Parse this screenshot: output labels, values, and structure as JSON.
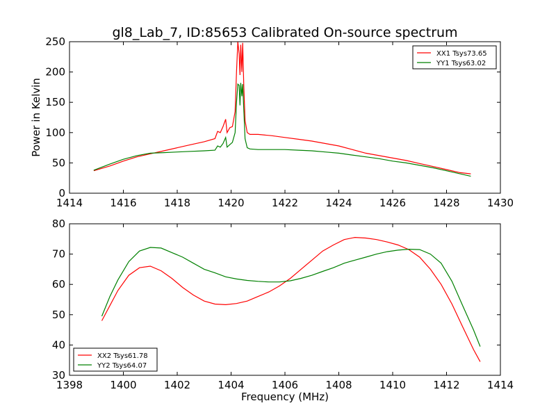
{
  "title": "gl8_Lab_7, ID:85653 Calibrated On-source spectrum",
  "xlabel": "Frequency (MHz)",
  "ylabel": "Power in Kelvin",
  "chart_data": [
    {
      "type": "line",
      "xlim": [
        1414,
        1430
      ],
      "ylim": [
        0,
        250
      ],
      "xticks": [
        "1414",
        "1416",
        "1418",
        "1420",
        "1422",
        "1424",
        "1426",
        "1428",
        "1430"
      ],
      "yticks": [
        "0",
        "50",
        "100",
        "150",
        "200",
        "250"
      ],
      "legend_position": "top-right",
      "grid": false,
      "series": [
        {
          "name": "XX1 Tsys73.65",
          "color": "#ff0000",
          "x": [
            1414.9,
            1415.5,
            1416.0,
            1416.5,
            1417.0,
            1417.5,
            1418.0,
            1418.5,
            1419.0,
            1419.4,
            1419.5,
            1419.6,
            1419.7,
            1419.8,
            1419.85,
            1419.95,
            1420.05,
            1420.15,
            1420.2,
            1420.25,
            1420.3,
            1420.33,
            1420.36,
            1420.4,
            1420.43,
            1420.47,
            1420.52,
            1420.6,
            1420.7,
            1421.0,
            1421.5,
            1422.0,
            1422.5,
            1423.0,
            1423.5,
            1424.0,
            1424.5,
            1425.0,
            1425.5,
            1426.0,
            1426.5,
            1427.0,
            1427.5,
            1428.0,
            1428.5,
            1428.9
          ],
          "y": [
            37,
            45,
            53,
            60,
            65,
            70,
            75,
            80,
            85,
            90,
            102,
            100,
            110,
            122,
            100,
            108,
            110,
            135,
            200,
            250,
            230,
            195,
            245,
            200,
            248,
            180,
            120,
            100,
            97,
            97,
            95,
            92,
            89,
            86,
            82,
            78,
            72,
            66,
            62,
            58,
            54,
            49,
            44,
            39,
            34,
            32
          ]
        },
        {
          "name": "YY1 Tsys63.02",
          "color": "#008000",
          "x": [
            1414.9,
            1415.5,
            1416.0,
            1416.5,
            1417.0,
            1417.5,
            1418.0,
            1418.5,
            1419.0,
            1419.4,
            1419.5,
            1419.6,
            1419.7,
            1419.8,
            1419.85,
            1419.95,
            1420.05,
            1420.15,
            1420.2,
            1420.25,
            1420.3,
            1420.33,
            1420.36,
            1420.4,
            1420.43,
            1420.47,
            1420.52,
            1420.6,
            1420.7,
            1421.0,
            1421.5,
            1422.0,
            1422.5,
            1423.0,
            1423.5,
            1424.0,
            1424.5,
            1425.0,
            1425.5,
            1426.0,
            1426.5,
            1427.0,
            1427.5,
            1428.0,
            1428.5,
            1428.9
          ],
          "y": [
            38,
            48,
            56,
            62,
            66,
            67,
            68,
            69,
            70,
            71,
            78,
            76,
            82,
            92,
            76,
            80,
            84,
            100,
            150,
            180,
            178,
            145,
            182,
            160,
            180,
            140,
            90,
            75,
            73,
            72,
            72,
            72,
            71,
            70,
            68,
            66,
            63,
            60,
            57,
            53,
            50,
            46,
            42,
            37,
            32,
            28
          ]
        }
      ]
    },
    {
      "type": "line",
      "xlim": [
        1398,
        1414
      ],
      "ylim": [
        30,
        80
      ],
      "xticks": [
        "1398",
        "1400",
        "1402",
        "1404",
        "1406",
        "1408",
        "1410",
        "1412",
        "1414"
      ],
      "yticks": [
        "30",
        "40",
        "50",
        "60",
        "70",
        "80"
      ],
      "legend_position": "bottom-left",
      "grid": false,
      "series": [
        {
          "name": "XX2 Tsys61.78",
          "color": "#ff0000",
          "x": [
            1399.2,
            1399.5,
            1399.8,
            1400.2,
            1400.6,
            1401.0,
            1401.4,
            1401.8,
            1402.2,
            1402.6,
            1403.0,
            1403.4,
            1403.8,
            1404.2,
            1404.6,
            1405.0,
            1405.4,
            1405.8,
            1406.2,
            1406.6,
            1407.0,
            1407.4,
            1407.8,
            1408.2,
            1408.6,
            1409.0,
            1409.4,
            1409.8,
            1410.2,
            1410.6,
            1411.0,
            1411.4,
            1411.8,
            1412.2,
            1412.6,
            1413.0,
            1413.25
          ],
          "y": [
            48,
            53,
            58,
            63,
            65.5,
            66,
            64.5,
            62,
            59,
            56.5,
            54.5,
            53.5,
            53.3,
            53.7,
            54.5,
            56,
            57.5,
            59.5,
            62,
            65,
            68,
            71,
            73,
            74.8,
            75.5,
            75.3,
            74.8,
            74,
            73,
            71.5,
            69,
            65,
            60,
            53.5,
            46,
            38.5,
            34.5
          ]
        },
        {
          "name": "YY2 Tsys64.07",
          "color": "#008000",
          "x": [
            1399.2,
            1399.5,
            1399.8,
            1400.2,
            1400.6,
            1401.0,
            1401.4,
            1401.8,
            1402.2,
            1402.6,
            1403.0,
            1403.4,
            1403.8,
            1404.2,
            1404.6,
            1405.0,
            1405.4,
            1405.8,
            1406.2,
            1406.6,
            1407.0,
            1407.4,
            1407.8,
            1408.2,
            1408.6,
            1409.0,
            1409.4,
            1409.8,
            1410.2,
            1410.6,
            1411.0,
            1411.4,
            1411.8,
            1412.2,
            1412.6,
            1413.0,
            1413.25
          ],
          "y": [
            49.5,
            56,
            61.5,
            67.5,
            71,
            72.2,
            72,
            70.5,
            69,
            67,
            65,
            63.8,
            62.5,
            61.8,
            61.3,
            61,
            60.8,
            60.8,
            61.2,
            62,
            63,
            64.3,
            65.5,
            67,
            68,
            69,
            70,
            70.8,
            71.3,
            71.6,
            71.5,
            70,
            67,
            61,
            53,
            45,
            39.5
          ]
        }
      ]
    }
  ]
}
